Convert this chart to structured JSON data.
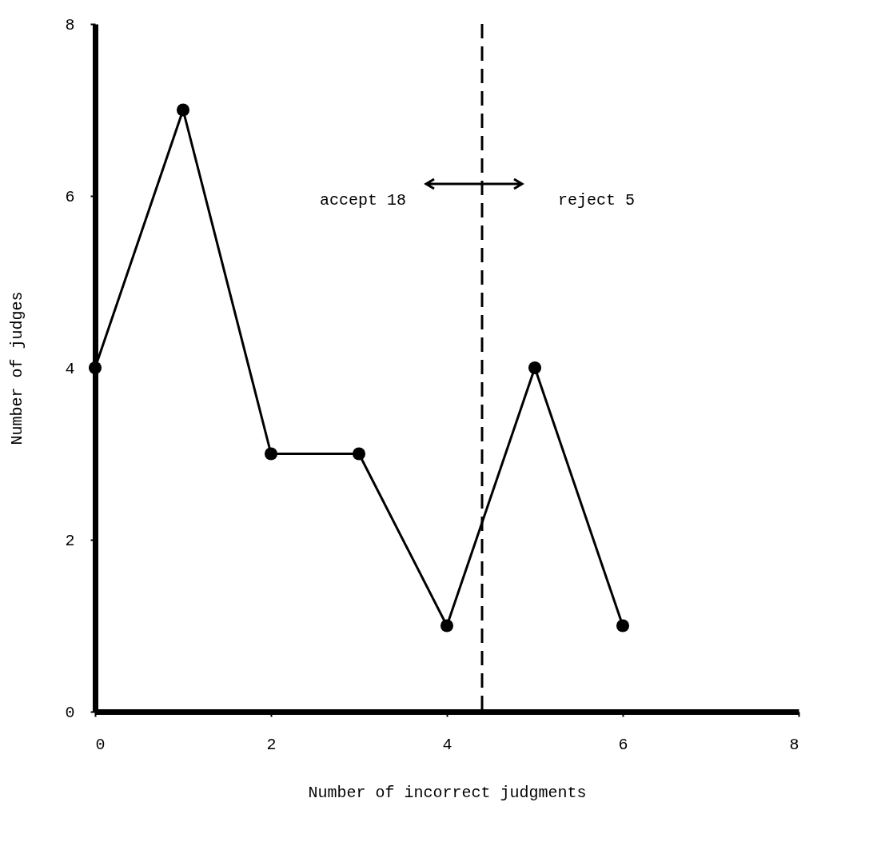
{
  "chart_data": {
    "type": "line",
    "xlabel": "Number of incorrect judgments",
    "ylabel": "Number of judges",
    "x": [
      0,
      1,
      2,
      3,
      4,
      5,
      6
    ],
    "series": [
      {
        "color": "#000000",
        "values": [
          4,
          7,
          3,
          3,
          1,
          4,
          1
        ]
      }
    ],
    "xlim": [
      0,
      8
    ],
    "ylim": [
      0,
      8
    ],
    "xticks": [
      0,
      2,
      4,
      6,
      8
    ],
    "yticks": [
      0,
      2,
      4,
      6,
      8
    ],
    "marker": "circle",
    "line_style": "solid",
    "ref_lines": [
      {
        "axis": "x",
        "value": 4.4,
        "line_style": "dashed",
        "color": "#000000"
      }
    ],
    "annotations": [
      "accept 18",
      "reject 5"
    ]
  }
}
